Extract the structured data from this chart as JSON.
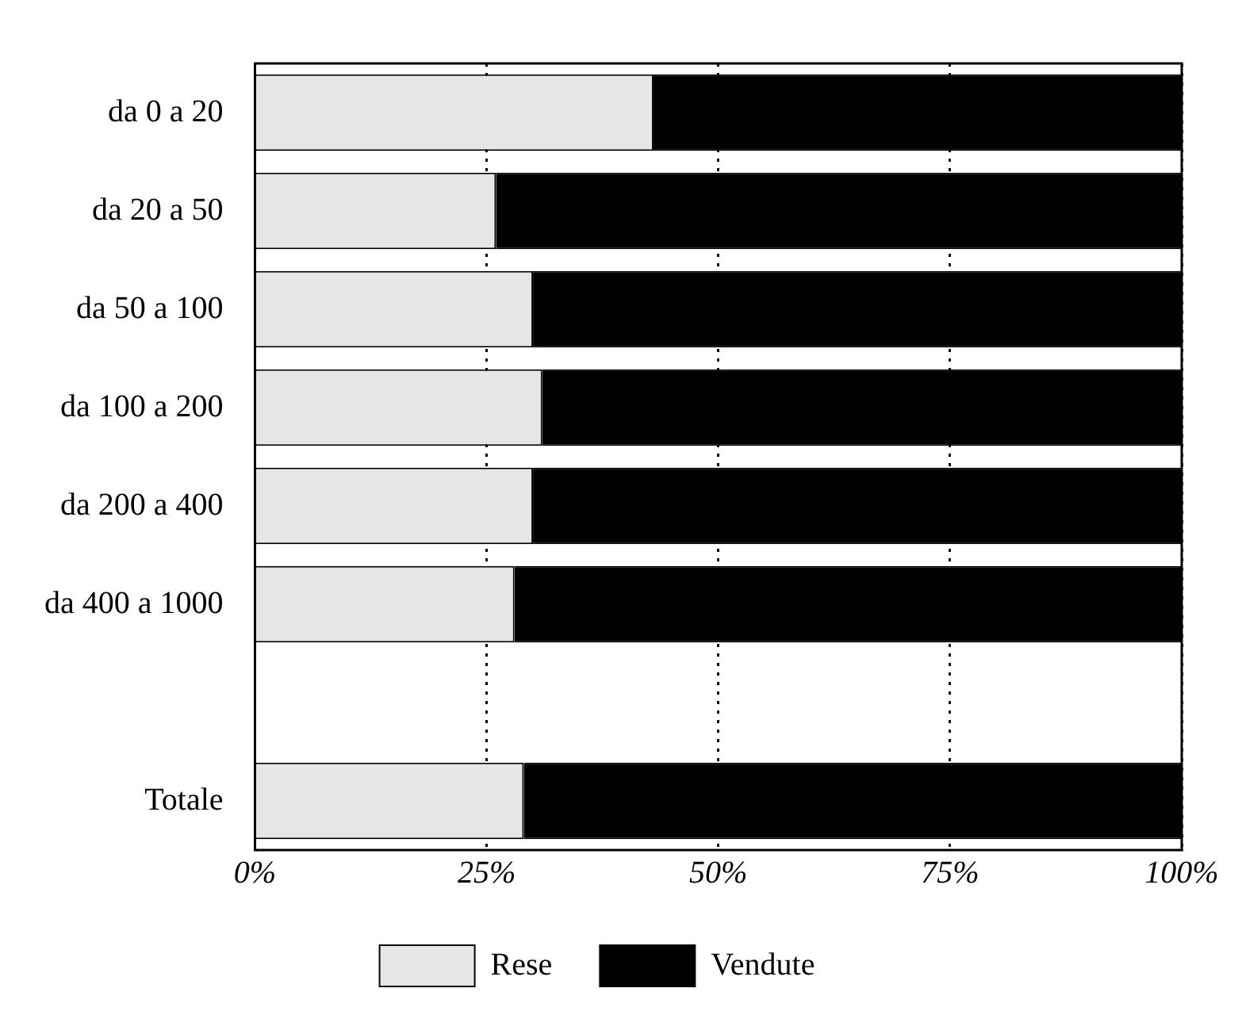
{
  "chart_data": {
    "type": "bar",
    "orientation": "horizontal",
    "stacked": true,
    "categories": [
      "da 0 a 20",
      "da 20 a 50",
      "da 50 a 100",
      "da 100 a 200",
      "da 200 a 400",
      "da 400 a 1000",
      null,
      "Totale"
    ],
    "series": [
      {
        "name": "Rese",
        "color": "#e6e6e6",
        "values": [
          43,
          26,
          30,
          31,
          30,
          28,
          null,
          29
        ]
      },
      {
        "name": "Vendute",
        "color": "#000000",
        "values": [
          57,
          74,
          70,
          69,
          70,
          72,
          null,
          71
        ]
      }
    ],
    "xlim": [
      0,
      100
    ],
    "xticks": [
      {
        "value": 0,
        "label": "0%"
      },
      {
        "value": 25,
        "label": "25%"
      },
      {
        "value": 50,
        "label": "50%"
      },
      {
        "value": 75,
        "label": "75%"
      },
      {
        "value": 100,
        "label": "100%"
      }
    ],
    "grid": "x",
    "legend": "bottom"
  }
}
